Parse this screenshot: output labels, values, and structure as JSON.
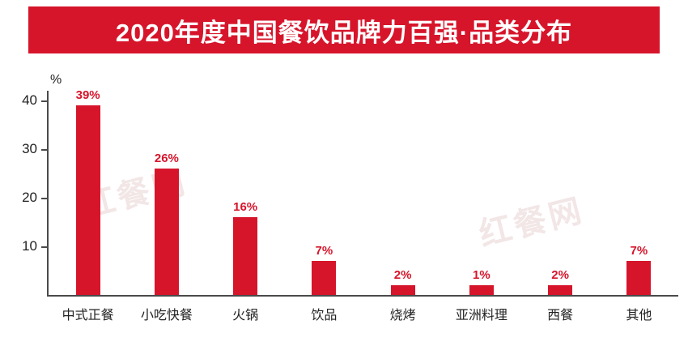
{
  "header": {
    "title": "2020年度中国餐饮品牌力百强·品类分布"
  },
  "colors": {
    "accent": "#d6152b",
    "bar": "#d6152b",
    "value_label": "#d6152b",
    "axis": "#4a4a4a",
    "banner_text": "#ffffff"
  },
  "watermark": {
    "text": "红餐网"
  },
  "chart_data": {
    "type": "bar",
    "title": "2020年度中国餐饮品牌力百强·品类分布",
    "categories": [
      "中式正餐",
      "小吃快餐",
      "火锅",
      "饮品",
      "烧烤",
      "亚洲料理",
      "西餐",
      "其他"
    ],
    "values": [
      39,
      26,
      16,
      7,
      2,
      1,
      2,
      7
    ],
    "value_labels": [
      "39%",
      "26%",
      "16%",
      "7%",
      "2%",
      "1%",
      "2%",
      "7%"
    ],
    "xlabel": "",
    "ylabel": "%",
    "ylim": [
      0,
      42
    ],
    "yticks": [
      10,
      20,
      30,
      40
    ],
    "grid": false,
    "legend": false
  }
}
